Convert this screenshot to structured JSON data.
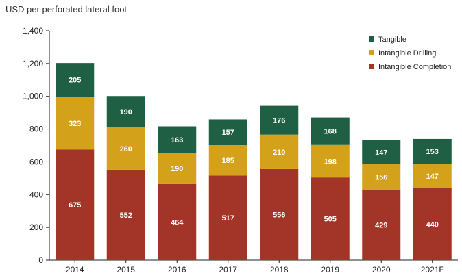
{
  "chart_data": {
    "type": "bar",
    "stacked": true,
    "ylabel": "USD per perforated lateral foot",
    "ylim": [
      0,
      1400
    ],
    "yticks": [
      0,
      200,
      400,
      600,
      800,
      1000,
      1200,
      1400
    ],
    "ytick_labels": [
      "0",
      "200",
      "400",
      "600",
      "800",
      "1,000",
      "1,200",
      "1,400"
    ],
    "grid": false,
    "legend_position": "top-right",
    "categories": [
      "2014",
      "2015",
      "2016",
      "2017",
      "2018",
      "2019",
      "2020",
      "2021F"
    ],
    "series": [
      {
        "name": "Intangible Completion",
        "color": "#a33428",
        "values": [
          675,
          552,
          464,
          517,
          556,
          505,
          429,
          440
        ]
      },
      {
        "name": "Intangible Drilling",
        "color": "#d4a21a",
        "values": [
          323,
          260,
          190,
          185,
          210,
          198,
          156,
          147
        ]
      },
      {
        "name": "Tangible",
        "color": "#1f5f43",
        "values": [
          205,
          190,
          163,
          157,
          176,
          168,
          147,
          153
        ]
      }
    ],
    "legend_order": [
      "Tangible",
      "Intangible Drilling",
      "Intangible Completion"
    ]
  }
}
